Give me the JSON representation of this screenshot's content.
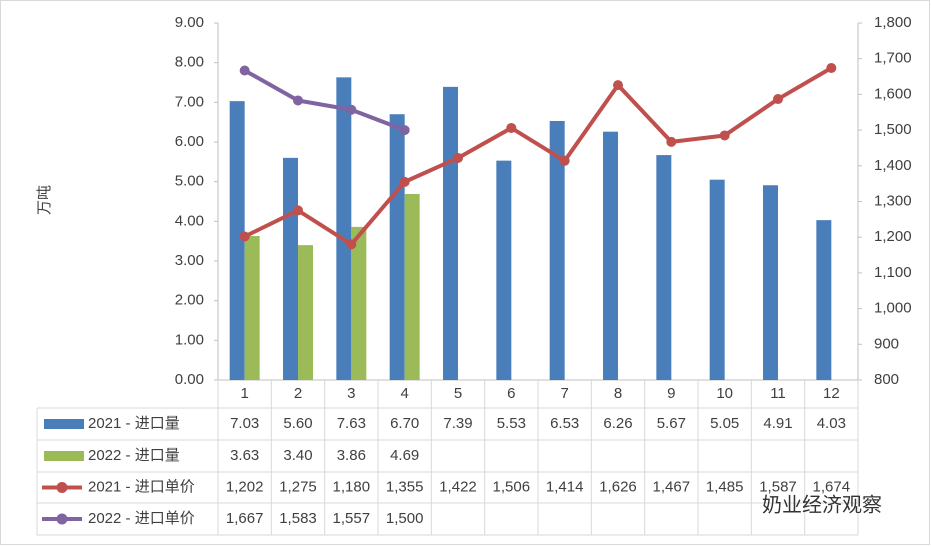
{
  "chart_data": {
    "type": "bar",
    "y_label": "万吨",
    "watermark": "奶业经济观察",
    "categories": [
      "1",
      "2",
      "3",
      "4",
      "5",
      "6",
      "7",
      "8",
      "9",
      "10",
      "11",
      "12"
    ],
    "ylim": [
      0,
      9
    ],
    "yticks": [
      {
        "value": 0,
        "label": "0.00"
      },
      {
        "value": 1,
        "label": "1.00"
      },
      {
        "value": 2,
        "label": "2.00"
      },
      {
        "value": 3,
        "label": "3.00"
      },
      {
        "value": 4,
        "label": "4.00"
      },
      {
        "value": 5,
        "label": "5.00"
      },
      {
        "value": 6,
        "label": "6.00"
      },
      {
        "value": 7,
        "label": "7.00"
      },
      {
        "value": 8,
        "label": "8.00"
      },
      {
        "value": 9,
        "label": "9.00"
      }
    ],
    "y2lim": [
      800,
      1800
    ],
    "y2ticks": [
      800,
      900,
      {
        "value": 1000,
        "label": "1,000"
      },
      {
        "value": 1100,
        "label": "1,100"
      },
      {
        "value": 1200,
        "label": "1,200"
      },
      {
        "value": 1300,
        "label": "1,300"
      },
      {
        "value": 1400,
        "label": "1,400"
      },
      {
        "value": 1500,
        "label": "1,500"
      },
      {
        "value": 1600,
        "label": "1,600"
      },
      {
        "value": 1700,
        "label": "1,700"
      },
      {
        "value": 1800,
        "label": "1,800"
      }
    ],
    "series": [
      {
        "name": "2021 - 进口量",
        "type": "bar",
        "color": "#4a7ebb",
        "values": [
          7.03,
          5.6,
          7.63,
          6.7,
          7.39,
          5.53,
          6.53,
          6.26,
          5.67,
          5.05,
          4.91,
          4.03
        ],
        "value_labels": [
          "7.03",
          "5.60",
          "7.63",
          "6.70",
          "7.39",
          "5.53",
          "6.53",
          "6.26",
          "5.67",
          "5.05",
          "4.91",
          "4.03"
        ]
      },
      {
        "name": "2022 - 进口量",
        "type": "bar",
        "color": "#9bbb59",
        "values": [
          3.63,
          3.4,
          3.86,
          4.69,
          null,
          null,
          null,
          null,
          null,
          null,
          null,
          null
        ],
        "value_labels": [
          "3.63",
          "3.40",
          "3.86",
          "4.69",
          null,
          null,
          null,
          null,
          null,
          null,
          null,
          null
        ]
      },
      {
        "name": "2021 - 进口单价",
        "type": "line",
        "axis": "y2",
        "color": "#c0504d",
        "values": [
          1202,
          1275,
          1180,
          1355,
          1422,
          1506,
          1414,
          1626,
          1467,
          1485,
          1587,
          1674
        ],
        "value_labels": [
          "1,202",
          "1,275",
          "1,180",
          "1,355",
          "1,422",
          "1,506",
          "1,414",
          "1,626",
          "1,467",
          "1,485",
          "1,587",
          "1,674"
        ]
      },
      {
        "name": "2022 - 进口单价",
        "type": "line",
        "axis": "y2",
        "color": "#8064a2",
        "values": [
          1667,
          1583,
          1557,
          1500,
          null,
          null,
          null,
          null,
          null,
          null,
          null,
          null
        ],
        "value_labels": [
          "1,667",
          "1,583",
          "1,557",
          "1,500",
          null,
          null,
          null,
          null,
          null,
          null,
          null,
          null
        ]
      }
    ]
  }
}
